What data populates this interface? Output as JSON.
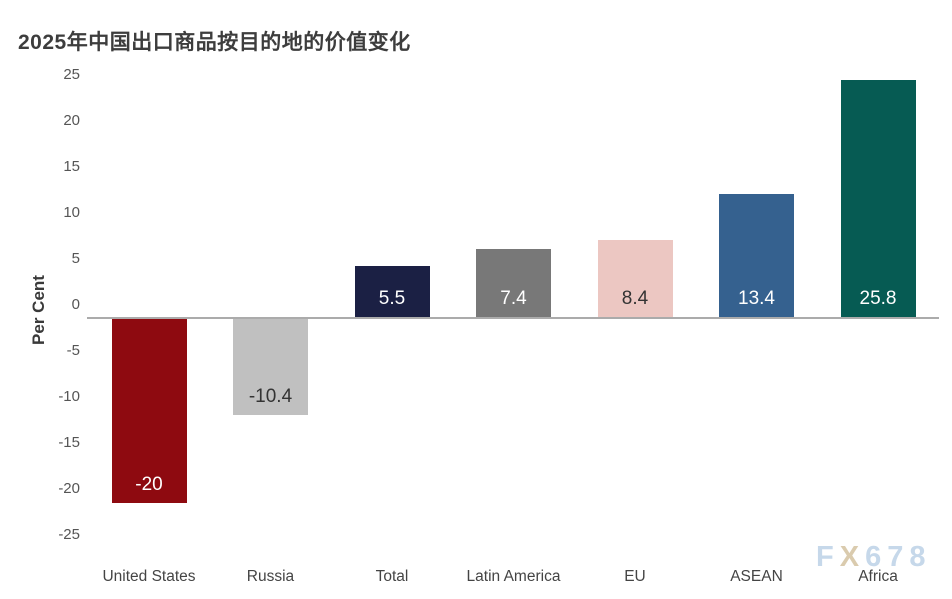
{
  "page": {
    "background": "#FFFFFF"
  },
  "watermark": {
    "text": "FX678",
    "segments": [
      {
        "text": "F",
        "color": "#C6D8EA"
      },
      {
        "text": "X",
        "color": "#DACBAE"
      },
      {
        "text": "678",
        "color": "#C6D8EA"
      }
    ]
  },
  "chart_data": {
    "type": "bar",
    "title": "2025年中国出口商品按目的地的价值变化",
    "xlabel": "",
    "ylabel": "Per Cent",
    "ylim": [
      -25,
      25
    ],
    "yticks": [
      25,
      20,
      15,
      10,
      5,
      0,
      -5,
      -10,
      -15,
      -20,
      -25
    ],
    "grid": false,
    "legend_position": "none",
    "baseline_color": "#ABABAB",
    "categories": [
      "United States",
      "Russia",
      "Total",
      "Latin America",
      "EU",
      "ASEAN",
      "Africa"
    ],
    "values": [
      -20,
      -10.4,
      5.5,
      7.4,
      8.4,
      13.4,
      25.8
    ],
    "value_labels": [
      "-20",
      "-10.4",
      "5.5",
      "7.4",
      "8.4",
      "13.4",
      "25.8"
    ],
    "bar_colors": [
      "#8E0A10",
      "#C0C0C0",
      "#1B2044",
      "#787878",
      "#ECC7C2",
      "#35618F",
      "#065B53"
    ],
    "value_label_colors": [
      "#FFFFFF",
      "#333333",
      "#FFFFFF",
      "#FFFFFF",
      "#333333",
      "#FFFFFF",
      "#FFFFFF"
    ]
  },
  "axis": {
    "tick_color": "#555555",
    "category_color": "#444444"
  }
}
